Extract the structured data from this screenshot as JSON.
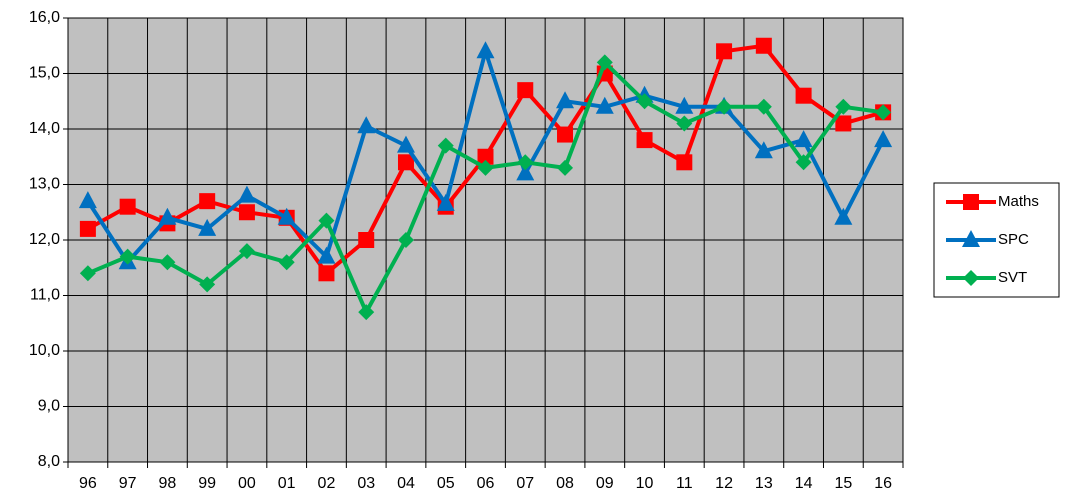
{
  "chart_data": {
    "type": "line",
    "categories": [
      "96",
      "97",
      "98",
      "99",
      "00",
      "01",
      "02",
      "03",
      "04",
      "05",
      "06",
      "07",
      "08",
      "09",
      "10",
      "11",
      "12",
      "13",
      "14",
      "15",
      "16"
    ],
    "series": [
      {
        "name": "Maths",
        "color": "#ff0000",
        "marker": "square",
        "values": [
          12.2,
          12.6,
          12.3,
          12.7,
          12.5,
          12.4,
          11.4,
          12.0,
          13.4,
          12.6,
          13.5,
          14.7,
          13.9,
          15.0,
          13.8,
          13.4,
          15.4,
          15.5,
          14.6,
          14.1,
          14.3
        ]
      },
      {
        "name": "SPC",
        "color": "#0070c0",
        "marker": "triangle",
        "values": [
          12.7,
          11.6,
          12.4,
          12.2,
          12.8,
          12.4,
          11.7,
          14.05,
          13.7,
          12.65,
          15.4,
          13.2,
          14.5,
          14.4,
          14.6,
          14.4,
          14.4,
          13.6,
          13.8,
          12.4,
          13.8
        ]
      },
      {
        "name": "SVT",
        "color": "#00b050",
        "marker": "diamond",
        "values": [
          11.4,
          11.7,
          11.6,
          11.2,
          11.8,
          11.6,
          12.35,
          10.7,
          12.0,
          13.7,
          13.3,
          13.4,
          13.3,
          15.2,
          14.5,
          14.1,
          14.4,
          14.4,
          13.4,
          14.4,
          14.3
        ]
      }
    ],
    "ylim": [
      8,
      16
    ],
    "yticks": [
      {
        "value": 8,
        "label": "8,0"
      },
      {
        "value": 9,
        "label": "9,0"
      },
      {
        "value": 10,
        "label": "10,0"
      },
      {
        "value": 11,
        "label": "11,0"
      },
      {
        "value": 12,
        "label": "12,0"
      },
      {
        "value": 13,
        "label": "13,0"
      },
      {
        "value": 14,
        "label": "14,0"
      },
      {
        "value": 15,
        "label": "15,0"
      },
      {
        "value": 16,
        "label": "16,0"
      }
    ],
    "grid": true,
    "legend": "right",
    "plot_background": "#c0c0c0"
  }
}
